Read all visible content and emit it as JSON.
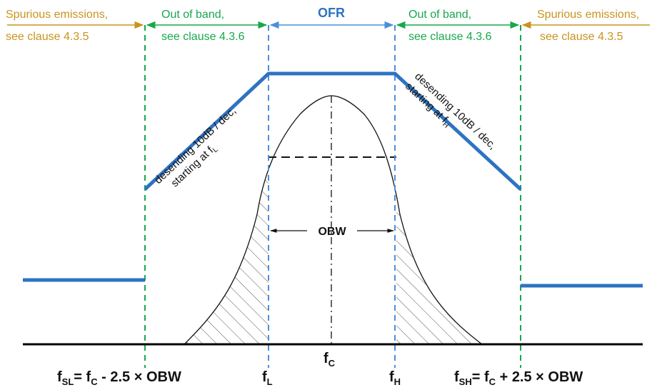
{
  "labels": {
    "spurious_left": [
      "Spurious emissions,",
      "see clause 4.3.5"
    ],
    "oob_left": [
      "Out of band,",
      "see clause 4.3.6"
    ],
    "ofr": "OFR",
    "oob_right": [
      "Out of band,",
      "see clause 4.3.6"
    ],
    "spurious_right": [
      "Spurious emissions,",
      "see clause 4.3.5"
    ],
    "slope_left": {
      "line1": "desending 10dB / dec,",
      "line2_prefix": "starting at f",
      "line2_sub": "L"
    },
    "slope_right": {
      "line1": "desending 10dB / dec,",
      "line2_prefix": "starting at f",
      "line2_sub": "H"
    },
    "obw": "OBW",
    "fc": {
      "main": "f",
      "sub": "C"
    },
    "fl": {
      "main": "f",
      "sub": "L"
    },
    "fh": {
      "main": "f",
      "sub": "H"
    },
    "fsl": {
      "f": "f",
      "sub": "SL",
      "eq": "= f",
      "csub": "C",
      "rest": " - 2.5 × OBW"
    },
    "fsh": {
      "f": "f",
      "sub": "SH",
      "eq": "= f",
      "csub": "C",
      "rest": " + 2.5 × OBW"
    }
  },
  "colors": {
    "mask_line": "#2e73c2",
    "orange_text": "#c8941e",
    "green_markers": "#18a84c",
    "blue_markers": "#4a90d9",
    "baseline": "#000000"
  }
}
